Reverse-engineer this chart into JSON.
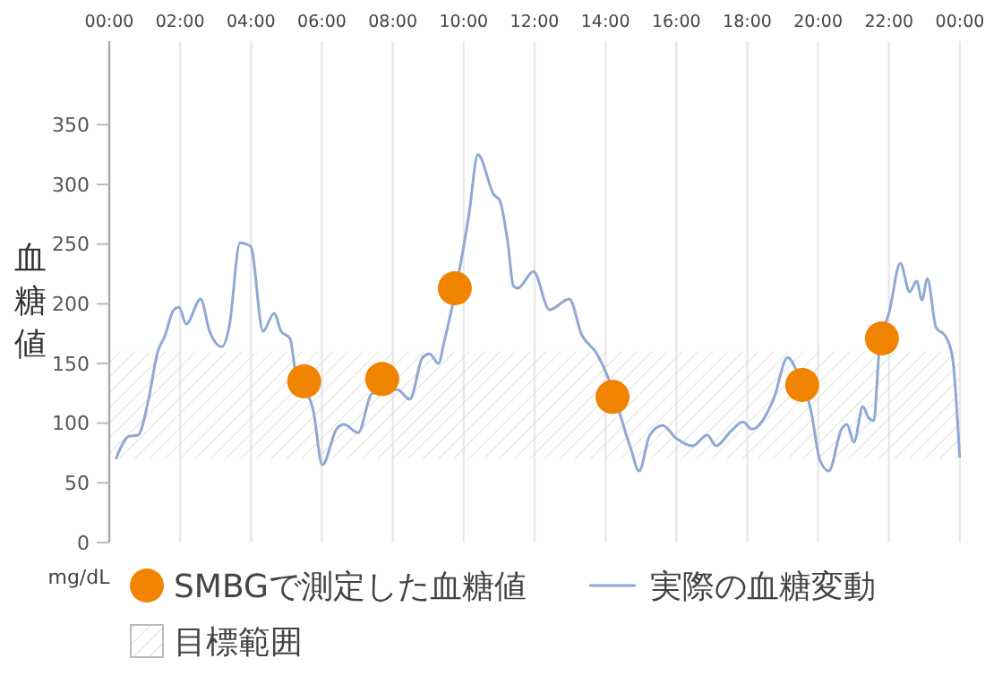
{
  "chart_data": {
    "type": "line",
    "ylabel": "血糖値",
    "annotations": [
      "mg/dL"
    ],
    "xlim": [
      0,
      24
    ],
    "xticks": [
      {
        "value": 0,
        "label": "00:00"
      },
      {
        "value": 2,
        "label": "02:00"
      },
      {
        "value": 4,
        "label": "04:00"
      },
      {
        "value": 6,
        "label": "06:00"
      },
      {
        "value": 8,
        "label": "08:00"
      },
      {
        "value": 10,
        "label": "10:00"
      },
      {
        "value": 12,
        "label": "12:00"
      },
      {
        "value": 14,
        "label": "14:00"
      },
      {
        "value": 16,
        "label": "16:00"
      },
      {
        "value": 18,
        "label": "18:00"
      },
      {
        "value": 20,
        "label": "20:00"
      },
      {
        "value": 22,
        "label": "22:00"
      },
      {
        "value": 24,
        "label": "00:00"
      }
    ],
    "ylim": [
      0,
      420
    ],
    "yticks": [
      0,
      50,
      100,
      150,
      200,
      250,
      300,
      350
    ],
    "grid": "x",
    "legend": "bottom",
    "bands": [
      {
        "axis": "y",
        "from": 70,
        "to": 160,
        "label": "目標範囲",
        "color": "#d9d9d9"
      }
    ],
    "series": [
      {
        "type": "scatter",
        "name": "SMBGで測定した血糖値",
        "color": "#f08300",
        "marker": "circle",
        "x": [
          5.5,
          7.7,
          9.75,
          14.2,
          19.55,
          21.8
        ],
        "values": [
          135,
          137,
          213,
          122,
          132,
          171
        ]
      },
      {
        "name": "実際の血糖変動",
        "color": "#8fa8d4",
        "marker": "none",
        "line_style": "solid",
        "x": [
          0.2,
          0.56,
          0.81,
          1.11,
          1.36,
          1.57,
          1.82,
          1.97,
          2.17,
          2.58,
          2.83,
          3.18,
          3.38,
          3.69,
          3.99,
          4.34,
          4.65,
          4.85,
          5.1,
          5.25,
          5.5,
          5.76,
          6.01,
          6.41,
          6.62,
          7.02,
          7.42,
          7.78,
          8.13,
          8.48,
          8.84,
          9.04,
          9.29,
          9.44,
          9.7,
          10.15,
          10.4,
          10.86,
          11.01,
          11.25,
          11.4,
          11.52,
          11.97,
          12.42,
          12.98,
          13.33,
          13.74,
          14.09,
          14.34,
          14.7,
          14.95,
          15.25,
          15.61,
          16.01,
          16.46,
          16.87,
          17.12,
          17.53,
          17.88,
          18.13,
          18.74,
          19.14,
          19.39,
          19.65,
          19.8,
          20.05,
          20.3,
          20.66,
          20.81,
          21.01,
          21.26,
          21.41,
          21.57,
          21.72,
          22.02,
          22.32,
          22.58,
          22.78,
          22.93,
          23.08,
          23.33,
          23.59,
          23.79,
          23.99
        ],
        "values": [
          71,
          89,
          90,
          120,
          159,
          173,
          195,
          197,
          183,
          204,
          177,
          164,
          180,
          251,
          248,
          177,
          192,
          177,
          171,
          144,
          null,
          110,
          65,
          95,
          99,
          92,
          125,
          null,
          128,
          120,
          155,
          158,
          150,
          167,
          null,
          275,
          325,
          291,
          287,
          250,
          215,
          213,
          227,
          195,
          204,
          174,
          159,
          137,
          null,
          80,
          60,
          90,
          98,
          87,
          81,
          90,
          81,
          93,
          101,
          95,
          120,
          155,
          144,
          null,
          110,
          69,
          60,
          95,
          99,
          84,
          114,
          105,
          102,
          159,
          195,
          234,
          210,
          219,
          203,
          221,
          180,
          173,
          155,
          72
        ]
      }
    ]
  }
}
